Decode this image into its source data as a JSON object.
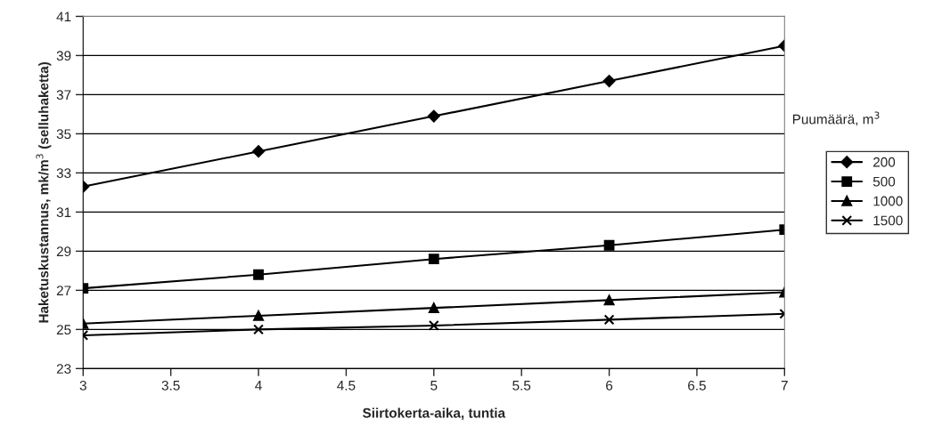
{
  "chart_data": {
    "type": "line",
    "xlabel": "Siirtokerta-aika, tuntia",
    "ylabel": "Haketuskustannus, mk/m$^{3}$ (selluhaketta)",
    "legend_title": "Puumäärä, m$^{3}$",
    "x": [
      3,
      4,
      5,
      6,
      7
    ],
    "xlim": [
      3,
      7
    ],
    "xticks": [
      3,
      3.5,
      4,
      4.5,
      5,
      5.5,
      6,
      6.5,
      7
    ],
    "ylim": [
      23,
      41
    ],
    "yticks": [
      23,
      25,
      27,
      29,
      31,
      33,
      35,
      37,
      39,
      41
    ],
    "grid": "y",
    "legend": "right",
    "series": [
      {
        "name": "200",
        "color": "#000000",
        "marker": "diamond",
        "values": [
          32.3,
          34.1,
          35.9,
          37.7,
          39.5
        ]
      },
      {
        "name": "500",
        "color": "#000000",
        "marker": "square",
        "values": [
          27.1,
          27.8,
          28.6,
          29.3,
          30.1
        ]
      },
      {
        "name": "1000",
        "color": "#000000",
        "marker": "triangle",
        "values": [
          25.3,
          25.7,
          26.1,
          26.5,
          26.9
        ]
      },
      {
        "name": "1500",
        "color": "#000000",
        "marker": "cross",
        "values": [
          24.7,
          25.0,
          25.2,
          25.5,
          25.8
        ]
      }
    ]
  }
}
